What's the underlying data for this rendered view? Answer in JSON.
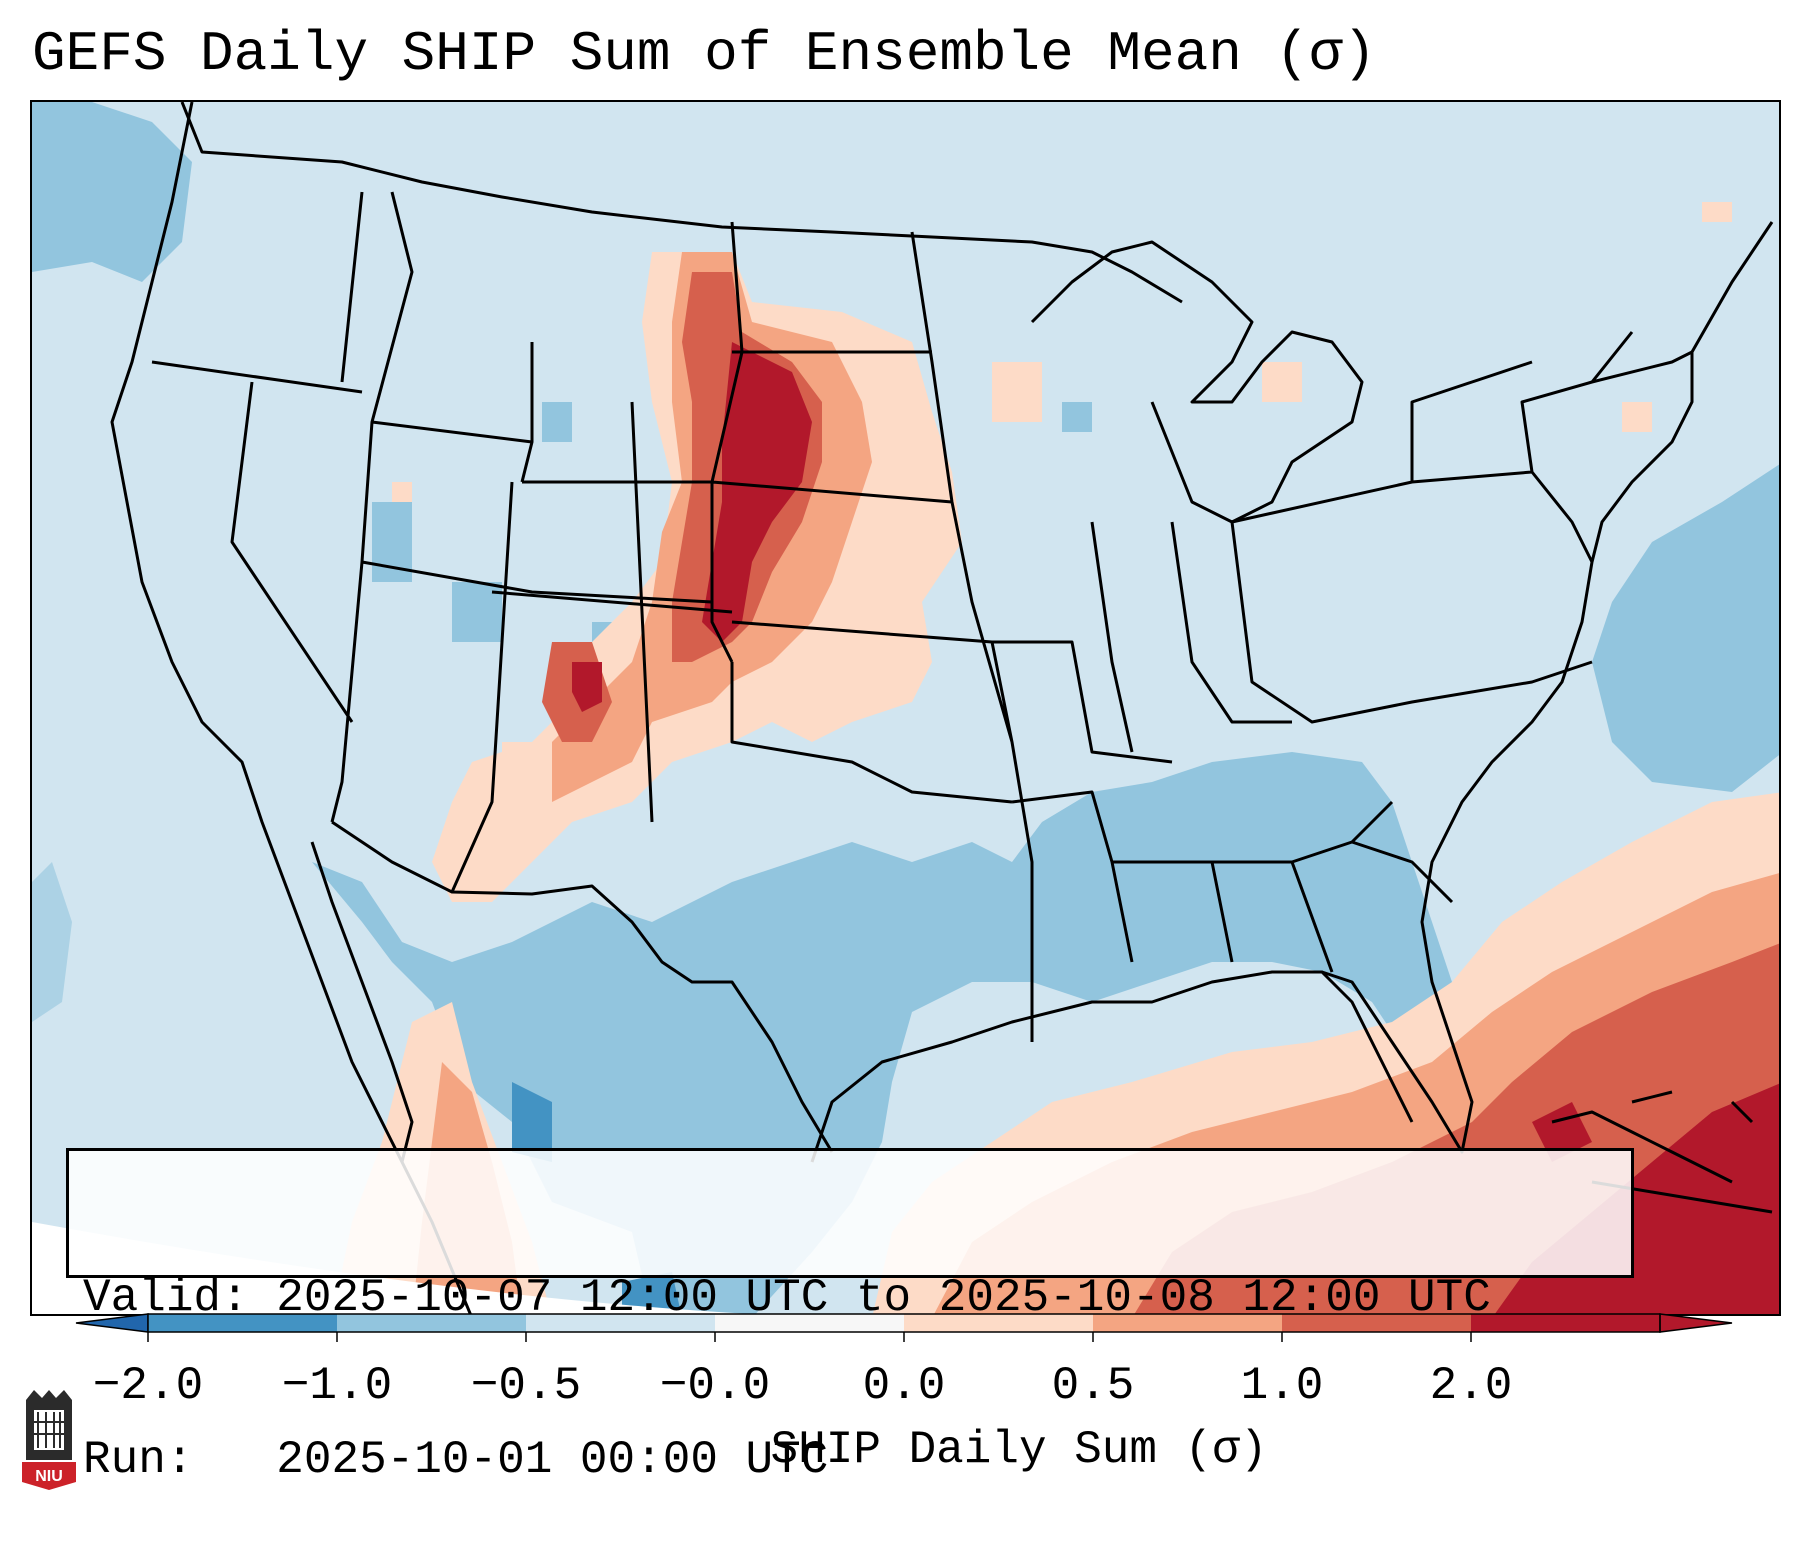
{
  "title": "GEFS Daily SHIP Sum of Ensemble Mean (σ)",
  "info": {
    "valid_label": "Valid:",
    "valid_value": "2025-10-07 12:00 UTC to 2025-10-08 12:00 UTC",
    "run_label": "Run:",
    "run_value": "2025-10-01 00:00 UTC"
  },
  "colorbar": {
    "label": "SHIP Daily Sum (σ)",
    "ticks": [
      "−2.0",
      "−1.0",
      "−0.5",
      "−0.0",
      "0.0",
      "0.5",
      "1.0",
      "2.0"
    ],
    "extend": "both",
    "colors": {
      "below_min": "#2166ac",
      "bins": [
        "#4393c3",
        "#92c5de",
        "#d1e5f0",
        "#f7f7f7",
        "#fddbc7",
        "#f4a582",
        "#d6604d",
        "#b2182b"
      ],
      "above_max": "#b2182b"
    }
  },
  "logo": {
    "text": "NIU",
    "colors": {
      "shield": "#cc2229",
      "tower": "#2b2b2b"
    }
  }
}
